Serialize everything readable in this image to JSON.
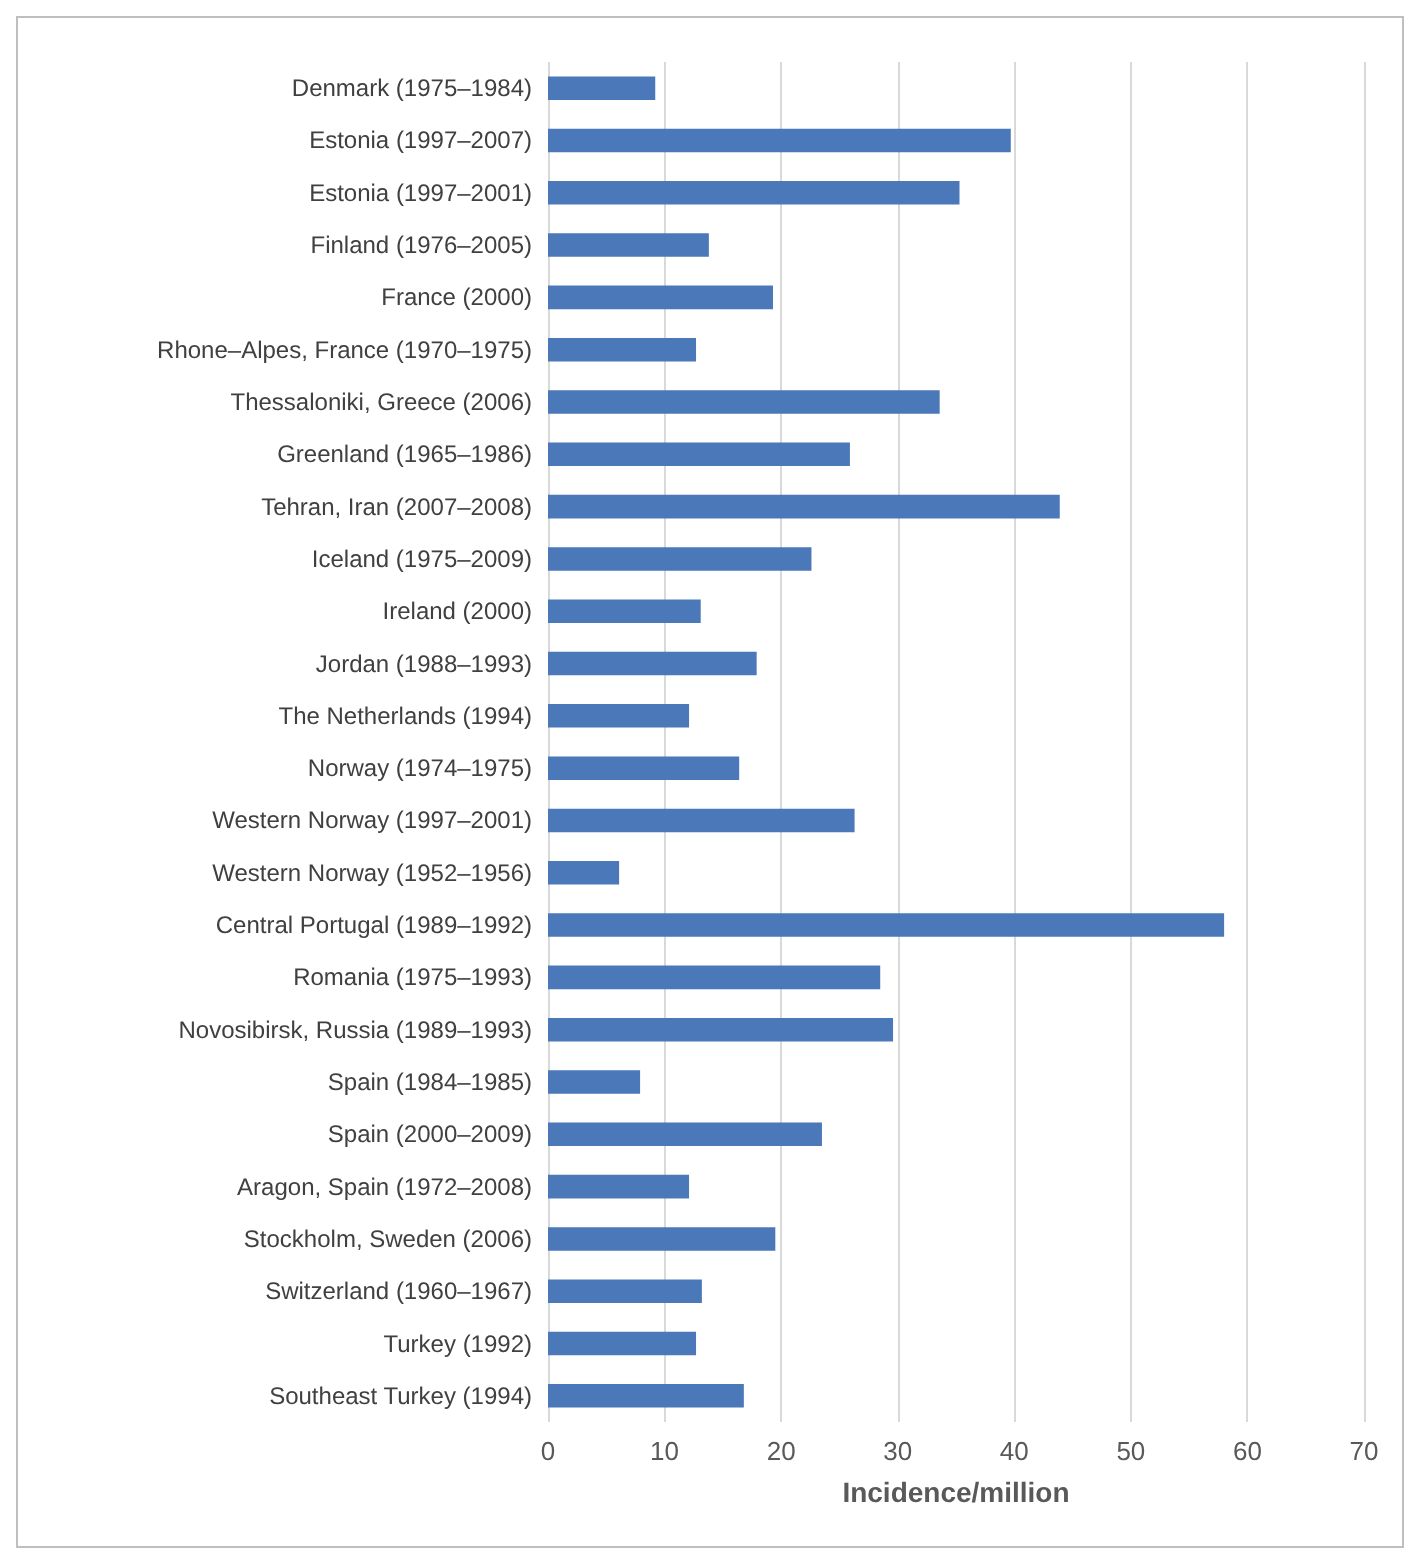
{
  "chart_data": {
    "type": "bar",
    "orientation": "horizontal",
    "xlabel": "Incidence/million",
    "categories": [
      "Denmark (1975–1984)",
      "Estonia (1997–2007)",
      "Estonia (1997–2001)",
      "Finland (1976–2005)",
      "France (2000)",
      "Rhone–Alpes, France (1970–1975)",
      "Thessaloniki, Greece (2006)",
      "Greenland (1965–1986)",
      "Tehran, Iran (2007–2008)",
      "Iceland (1975–2009)",
      "Ireland (2000)",
      "Jordan (1988–1993)",
      "The Netherlands (1994)",
      "Norway (1974–1975)",
      "Western Norway (1997–2001)",
      "Western Norway (1952–1956)",
      "Central Portugal (1989–1992)",
      "Romania (1975–1993)",
      "Novosibirsk, Russia (1989–1993)",
      "Spain (1984–1985)",
      "Spain (2000–2009)",
      "Aragon, Spain (1972–2008)",
      "Stockholm, Sweden (2006)",
      "Switzerland (1960–1967)",
      "Turkey (1992)",
      "Southeast Turkey (1994)"
    ],
    "values": [
      9.2,
      39.7,
      35.3,
      13.8,
      19.3,
      12.7,
      33.6,
      25.9,
      43.9,
      22.6,
      13.1,
      17.9,
      12.1,
      16.4,
      26.3,
      6.1,
      58.0,
      28.5,
      29.6,
      7.9,
      23.5,
      12.1,
      19.5,
      13.2,
      12.7,
      16.8
    ],
    "color": "#4a78b8",
    "xlim": [
      0,
      70
    ],
    "xticks": [
      0,
      10,
      20,
      30,
      40,
      50,
      60,
      70
    ],
    "grid": "x"
  }
}
